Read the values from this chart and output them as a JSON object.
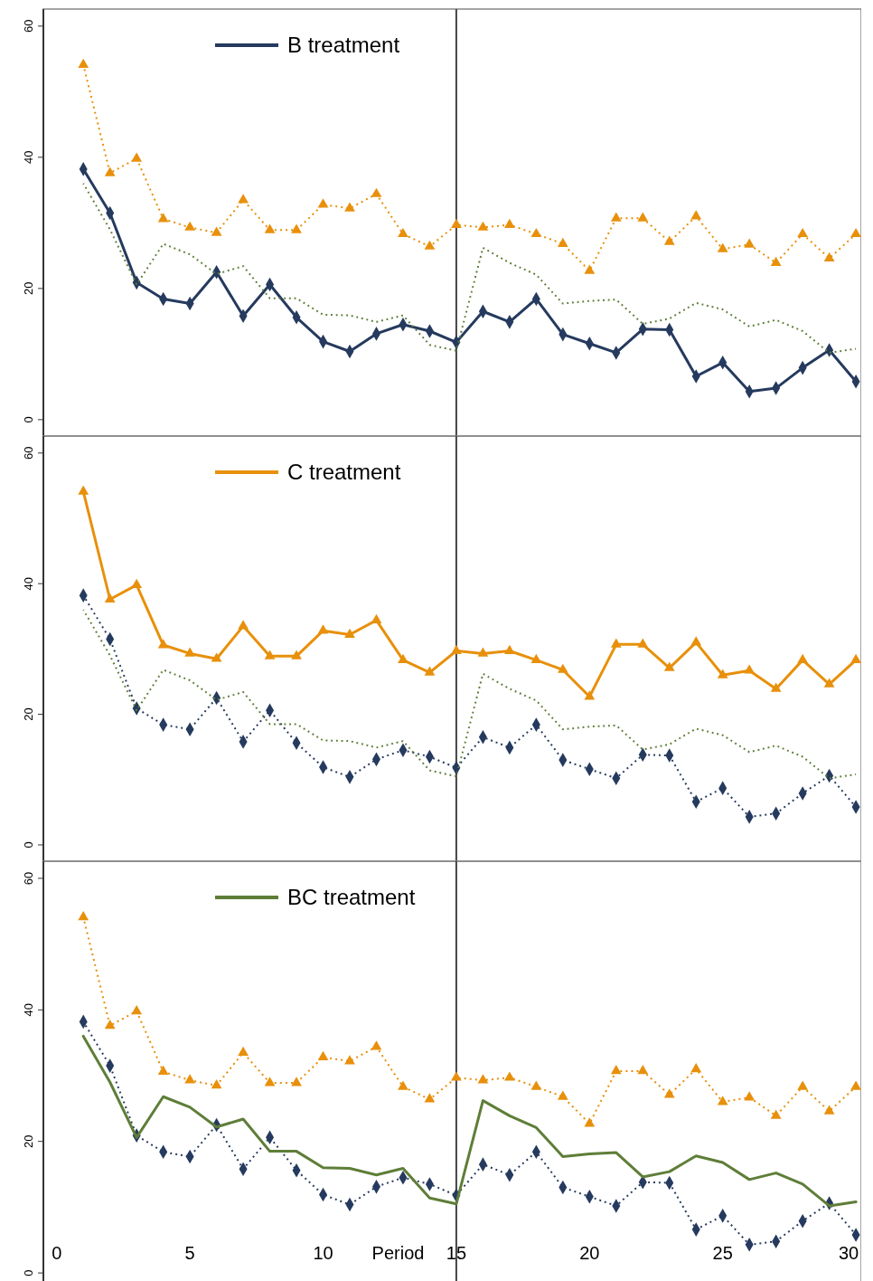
{
  "chart_data": [
    {
      "type": "line",
      "x": [
        1,
        2,
        3,
        4,
        5,
        6,
        7,
        8,
        9,
        10,
        11,
        12,
        13,
        14,
        15,
        16,
        17,
        18,
        19,
        20,
        21,
        22,
        23,
        24,
        25,
        26,
        27,
        28,
        29,
        30
      ],
      "xlim": [
        -0.5,
        30.2
      ],
      "ylim": [
        -2.5,
        62.6
      ],
      "yticks": [
        0,
        20,
        40,
        60
      ],
      "tick_labels": "y",
      "legend": "top",
      "ref_lines": [
        {
          "axis": "x",
          "value": 15,
          "color": "#444444"
        }
      ],
      "series": [
        {
          "name": "B treatment",
          "color": "#253a5e",
          "line_style": "solid",
          "marker": "diamond",
          "values": [
            38.2,
            31.5,
            20.9,
            18.4,
            17.7,
            22.5,
            15.8,
            20.6,
            15.6,
            11.9,
            10.4,
            13.1,
            14.5,
            13.5,
            11.8,
            16.5,
            14.9,
            18.4,
            13.0,
            11.6,
            10.2,
            13.8,
            13.7,
            6.6,
            8.7,
            4.3,
            4.8,
            7.9,
            10.6,
            5.8
          ]
        },
        {
          "color": "#e8900b",
          "line_style": "dotted",
          "marker": "triangle",
          "values": [
            54.1,
            37.6,
            39.8,
            30.6,
            29.3,
            28.5,
            33.5,
            28.9,
            28.9,
            32.8,
            32.2,
            34.4,
            28.3,
            26.4,
            29.7,
            29.3,
            29.7,
            28.3,
            26.8,
            22.7,
            30.7,
            30.7,
            27.1,
            31.0,
            26.0,
            26.7,
            23.9,
            28.3,
            24.6,
            28.3
          ]
        },
        {
          "color": "#5e7e38",
          "line_style": "dotted",
          "marker": "none",
          "values": [
            36.0,
            29.0,
            20.6,
            26.8,
            25.2,
            22.2,
            23.4,
            18.5,
            18.5,
            16.0,
            15.9,
            14.9,
            15.9,
            11.4,
            10.5,
            26.2,
            23.9,
            22.1,
            17.7,
            18.1,
            18.3,
            14.6,
            15.4,
            17.8,
            16.8,
            14.2,
            15.2,
            13.5,
            10.2,
            10.8
          ]
        }
      ]
    },
    {
      "type": "line",
      "x": [
        1,
        2,
        3,
        4,
        5,
        6,
        7,
        8,
        9,
        10,
        11,
        12,
        13,
        14,
        15,
        16,
        17,
        18,
        19,
        20,
        21,
        22,
        23,
        24,
        25,
        26,
        27,
        28,
        29,
        30
      ],
      "xlim": [
        -0.5,
        30.2
      ],
      "ylim": [
        -2.5,
        62.6
      ],
      "yticks": [
        0,
        20,
        40,
        60
      ],
      "tick_labels": "y",
      "legend": "top",
      "ref_lines": [
        {
          "axis": "x",
          "value": 15,
          "color": "#444444"
        }
      ],
      "series": [
        {
          "color": "#253a5e",
          "line_style": "dotted",
          "marker": "diamond",
          "values": [
            38.2,
            31.5,
            20.9,
            18.4,
            17.7,
            22.5,
            15.8,
            20.6,
            15.6,
            11.9,
            10.4,
            13.1,
            14.5,
            13.5,
            11.8,
            16.5,
            14.9,
            18.4,
            13.0,
            11.6,
            10.2,
            13.8,
            13.7,
            6.6,
            8.7,
            4.3,
            4.8,
            7.9,
            10.6,
            5.8
          ]
        },
        {
          "name": "C treatment",
          "color": "#e8900b",
          "line_style": "solid",
          "marker": "triangle",
          "values": [
            54.1,
            37.6,
            39.8,
            30.6,
            29.3,
            28.5,
            33.5,
            28.9,
            28.9,
            32.8,
            32.2,
            34.4,
            28.3,
            26.4,
            29.7,
            29.3,
            29.7,
            28.3,
            26.8,
            22.7,
            30.7,
            30.7,
            27.1,
            31.0,
            26.0,
            26.7,
            23.9,
            28.3,
            24.6,
            28.3
          ]
        },
        {
          "color": "#5e7e38",
          "line_style": "dotted",
          "marker": "none",
          "values": [
            36.0,
            29.0,
            20.6,
            26.8,
            25.2,
            22.2,
            23.4,
            18.5,
            18.5,
            16.0,
            15.9,
            14.9,
            15.9,
            11.4,
            10.5,
            26.2,
            23.9,
            22.1,
            17.7,
            18.1,
            18.3,
            14.6,
            15.4,
            17.8,
            16.8,
            14.2,
            15.2,
            13.5,
            10.2,
            10.8
          ]
        }
      ]
    },
    {
      "type": "line",
      "x": [
        1,
        2,
        3,
        4,
        5,
        6,
        7,
        8,
        9,
        10,
        11,
        12,
        13,
        14,
        15,
        16,
        17,
        18,
        19,
        20,
        21,
        22,
        23,
        24,
        25,
        26,
        27,
        28,
        29,
        30
      ],
      "xlim": [
        -0.5,
        30.2
      ],
      "ylim": [
        -1.5,
        62.6
      ],
      "yticks": [
        0,
        20,
        40,
        60
      ],
      "xticks": [
        0,
        5,
        10,
        15,
        20,
        25,
        30
      ],
      "xlabel": "Period",
      "legend": "top",
      "ref_lines": [
        {
          "axis": "x",
          "value": 15,
          "color": "#444444"
        }
      ],
      "series": [
        {
          "color": "#253a5e",
          "line_style": "dotted",
          "marker": "diamond",
          "values": [
            38.2,
            31.5,
            20.9,
            18.4,
            17.7,
            22.5,
            15.8,
            20.6,
            15.6,
            11.9,
            10.4,
            13.1,
            14.5,
            13.5,
            11.8,
            16.5,
            14.9,
            18.4,
            13.0,
            11.6,
            10.2,
            13.8,
            13.7,
            6.6,
            8.7,
            4.3,
            4.8,
            7.9,
            10.6,
            5.8
          ]
        },
        {
          "color": "#e8900b",
          "line_style": "dotted",
          "marker": "triangle",
          "values": [
            54.1,
            37.6,
            39.8,
            30.6,
            29.3,
            28.5,
            33.5,
            28.9,
            28.9,
            32.8,
            32.2,
            34.4,
            28.3,
            26.4,
            29.7,
            29.3,
            29.7,
            28.3,
            26.8,
            22.7,
            30.7,
            30.7,
            27.1,
            31.0,
            26.0,
            26.7,
            23.9,
            28.3,
            24.6,
            28.3
          ]
        },
        {
          "name": "BC treatment",
          "color": "#5e7e38",
          "line_style": "solid",
          "marker": "none",
          "values": [
            36.0,
            29.0,
            20.6,
            26.8,
            25.2,
            22.2,
            23.4,
            18.5,
            18.5,
            16.0,
            15.9,
            14.9,
            15.9,
            11.4,
            10.5,
            26.2,
            23.9,
            22.1,
            17.7,
            18.1,
            18.3,
            14.6,
            15.4,
            17.8,
            16.8,
            14.2,
            15.2,
            13.5,
            10.2,
            10.8
          ]
        }
      ]
    }
  ]
}
